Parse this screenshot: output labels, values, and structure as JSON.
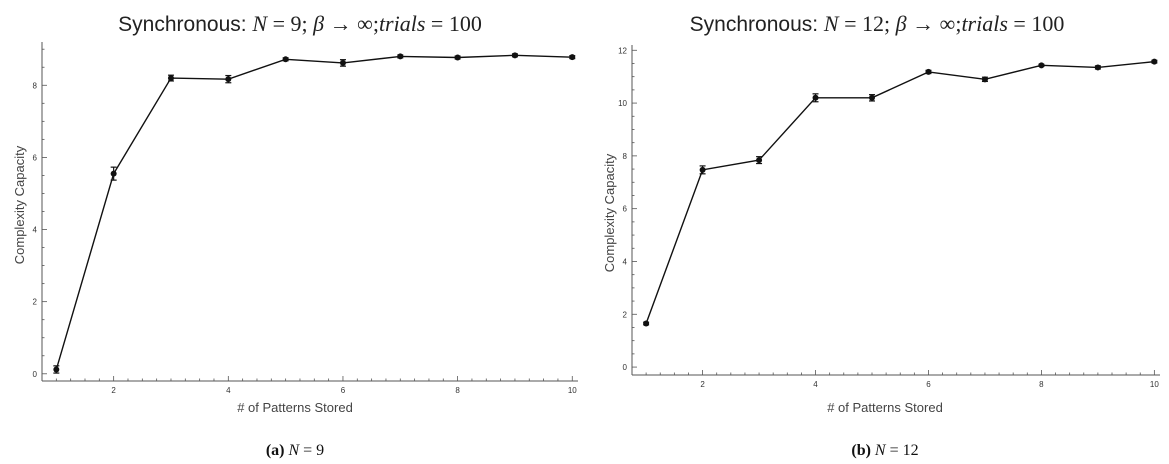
{
  "chart_data": [
    {
      "type": "line",
      "title": {
        "prefix": "Synchronous: ",
        "n_symbol": "N",
        "eq": " = ",
        "n_value": "9",
        "sep1": "; ",
        "beta_symbol": "β",
        "arrow": " → ∞",
        "sep2": ";",
        "trials_symbol": "trials",
        "eq2": " = ",
        "trials_value": "100"
      },
      "xlabel": "# of Patterns Stored",
      "ylabel": "Complexity Capacity",
      "xlim": [
        0.75,
        10.1
      ],
      "ylim": [
        -0.2,
        9.2
      ],
      "xticks": [
        2,
        4,
        6,
        8,
        10
      ],
      "yticks": [
        0,
        2,
        4,
        6,
        8
      ],
      "x": [
        1,
        2,
        3,
        4,
        5,
        6,
        7,
        8,
        9,
        10
      ],
      "y": [
        0.12,
        5.55,
        8.2,
        8.17,
        8.72,
        8.62,
        8.8,
        8.77,
        8.83,
        8.78
      ],
      "err": [
        0.1,
        0.18,
        0.08,
        0.1,
        0.04,
        0.09,
        0.04,
        0.04,
        0.04,
        0.04
      ],
      "grid": false,
      "caption": {
        "tag": "(a)",
        "symbol": "N",
        "eq": " = ",
        "value": "9"
      }
    },
    {
      "type": "line",
      "title": {
        "prefix": "Synchronous: ",
        "n_symbol": "N",
        "eq": " = ",
        "n_value": "12",
        "sep1": "; ",
        "beta_symbol": "β",
        "arrow": " → ∞",
        "sep2": ";",
        "trials_symbol": "trials",
        "eq2": " = ",
        "trials_value": "100"
      },
      "xlabel": "# of Patterns Stored",
      "ylabel": "Complexity Capacity",
      "xlim": [
        0.75,
        10.1
      ],
      "ylim": [
        -0.3,
        12.2
      ],
      "xticks": [
        2,
        4,
        6,
        8,
        10
      ],
      "yticks": [
        0,
        2,
        4,
        6,
        8,
        10,
        12
      ],
      "x": [
        1,
        2,
        3,
        4,
        5,
        6,
        7,
        8,
        9,
        10
      ],
      "y": [
        1.65,
        7.47,
        7.84,
        10.2,
        10.2,
        11.18,
        10.9,
        11.43,
        11.35,
        11.57
      ],
      "err": [
        0.05,
        0.15,
        0.13,
        0.15,
        0.12,
        0.06,
        0.08,
        0.04,
        0.06,
        0.05
      ],
      "grid": false,
      "caption": {
        "tag": "(b)",
        "symbol": "N",
        "eq": " = ",
        "value": "12"
      }
    }
  ]
}
